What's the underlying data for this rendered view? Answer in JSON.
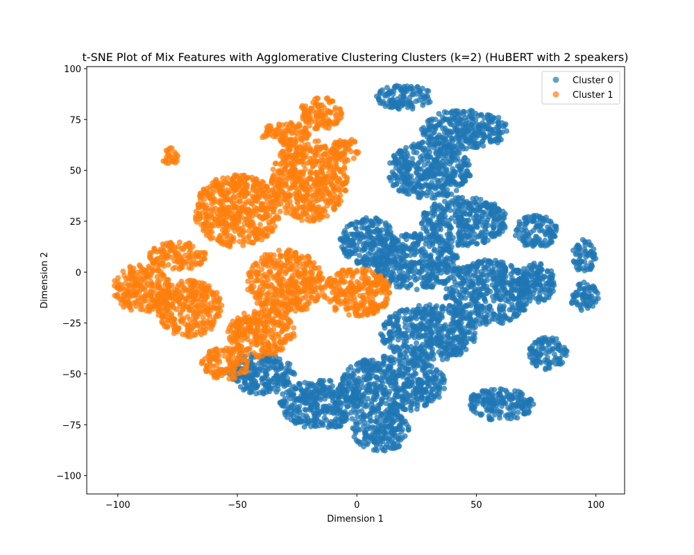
{
  "chart_data": {
    "type": "scatter",
    "title": "t-SNE Plot of Mix Features with Agglomerative Clustering Clusters (k=2) (HuBERT with 2 speakers)",
    "xlabel": "Dimension 1",
    "ylabel": "Dimension 2",
    "xlim": [
      -113,
      112
    ],
    "ylim": [
      -109,
      101
    ],
    "xticks": [
      -100,
      -50,
      0,
      50,
      100
    ],
    "yticks": [
      -100,
      -75,
      -50,
      -25,
      0,
      25,
      50,
      75,
      100
    ],
    "grid": false,
    "legend_position": "top-right",
    "series": [
      {
        "name": "Cluster 0",
        "color": "#1f77b4",
        "regions": [
          {
            "cx": 20,
            "cy": 86,
            "rx": 12,
            "ry": 6
          },
          {
            "cx": 45,
            "cy": 70,
            "rx": 18,
            "ry": 10
          },
          {
            "cx": 30,
            "cy": 50,
            "rx": 18,
            "ry": 14
          },
          {
            "cx": 45,
            "cy": 25,
            "rx": 18,
            "ry": 12
          },
          {
            "cx": 25,
            "cy": 5,
            "rx": 18,
            "ry": 14
          },
          {
            "cx": 55,
            "cy": -10,
            "rx": 18,
            "ry": 16
          },
          {
            "cx": 30,
            "cy": -30,
            "rx": 20,
            "ry": 14
          },
          {
            "cx": 15,
            "cy": -55,
            "rx": 22,
            "ry": 14
          },
          {
            "cx": 10,
            "cy": -78,
            "rx": 12,
            "ry": 10
          },
          {
            "cx": -15,
            "cy": -65,
            "rx": 18,
            "ry": 12
          },
          {
            "cx": -40,
            "cy": -50,
            "rx": 14,
            "ry": 10
          },
          {
            "cx": 75,
            "cy": 20,
            "rx": 9,
            "ry": 8
          },
          {
            "cx": 75,
            "cy": -5,
            "rx": 8,
            "ry": 10
          },
          {
            "cx": 80,
            "cy": -40,
            "rx": 8,
            "ry": 8
          },
          {
            "cx": 95,
            "cy": 8,
            "rx": 5,
            "ry": 8
          },
          {
            "cx": 95,
            "cy": -12,
            "rx": 6,
            "ry": 7
          },
          {
            "cx": 60,
            "cy": -65,
            "rx": 14,
            "ry": 8
          },
          {
            "cx": 5,
            "cy": 15,
            "rx": 12,
            "ry": 12
          }
        ]
      },
      {
        "name": "Cluster 1",
        "color": "#ff7f0e",
        "regions": [
          {
            "cx": -90,
            "cy": -8,
            "rx": 12,
            "ry": 12
          },
          {
            "cx": -70,
            "cy": -18,
            "rx": 14,
            "ry": 14
          },
          {
            "cx": -75,
            "cy": 8,
            "rx": 12,
            "ry": 7
          },
          {
            "cx": -50,
            "cy": 30,
            "rx": 18,
            "ry": 18
          },
          {
            "cx": -20,
            "cy": 45,
            "rx": 16,
            "ry": 20
          },
          {
            "cx": -15,
            "cy": 78,
            "rx": 9,
            "ry": 8
          },
          {
            "cx": -30,
            "cy": -5,
            "rx": 16,
            "ry": 16
          },
          {
            "cx": 0,
            "cy": -10,
            "rx": 14,
            "ry": 12
          },
          {
            "cx": -40,
            "cy": -30,
            "rx": 14,
            "ry": 12
          },
          {
            "cx": -55,
            "cy": -45,
            "rx": 10,
            "ry": 8
          },
          {
            "cx": -78,
            "cy": 57,
            "rx": 4,
            "ry": 4
          },
          {
            "cx": -30,
            "cy": 68,
            "rx": 10,
            "ry": 6
          },
          {
            "cx": -5,
            "cy": 60,
            "rx": 6,
            "ry": 6
          }
        ]
      }
    ]
  }
}
